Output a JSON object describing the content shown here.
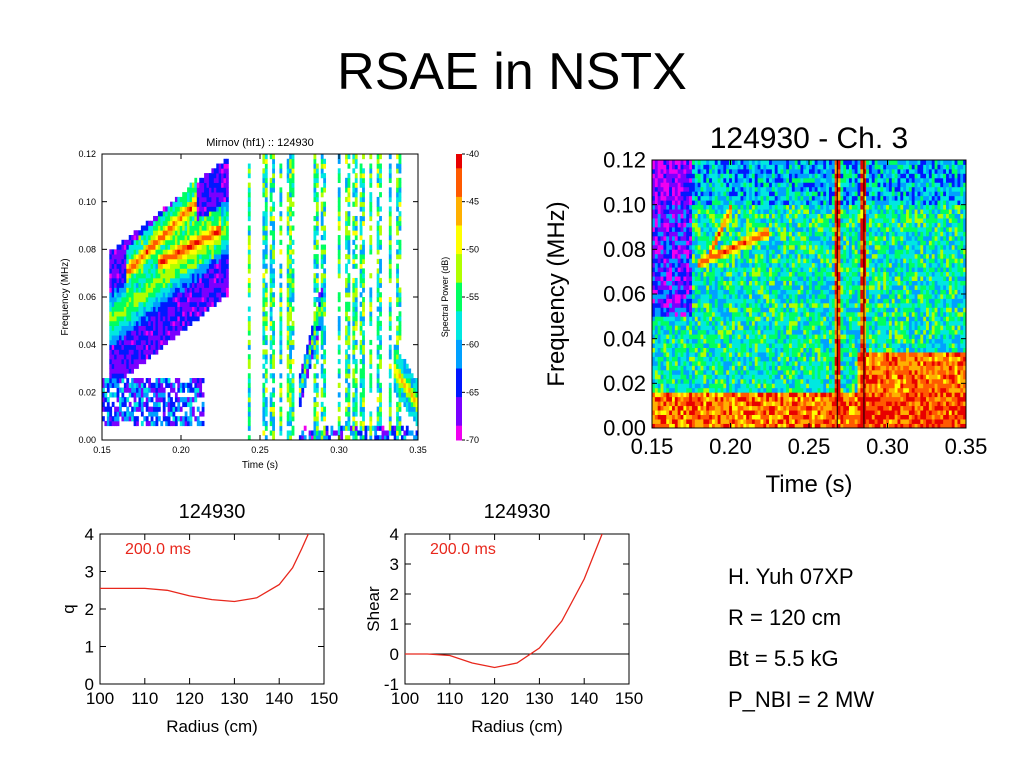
{
  "slide": {
    "title": "RSAE in NSTX",
    "params": [
      "H. Yuh 07XP",
      "R = 120 cm",
      "Bt = 5.5 kG",
      "P_NBI = 2 MW"
    ]
  },
  "colors": {
    "colorbar": [
      "#f000f0",
      "#7a00ff",
      "#0018ff",
      "#00a0ff",
      "#00e8e0",
      "#00ff60",
      "#b0ff00",
      "#ffff00",
      "#ffb000",
      "#ff5a00",
      "#e80000"
    ],
    "profile_line": "#e8271c",
    "zero_line": "#000000",
    "annotation": "#e8271c"
  },
  "chart_data": [
    {
      "type": "heatmap",
      "title": "Mirnov (hf1) :: 124930",
      "xlabel": "Time (s)",
      "ylabel": "Frequency (MHz)",
      "xlim": [
        0.15,
        0.35
      ],
      "ylim": [
        0.0,
        0.12
      ],
      "xticks": [
        "0.15",
        "0.20",
        "0.25",
        "0.30",
        "0.35"
      ],
      "yticks": [
        "0.00",
        "0.02",
        "0.04",
        "0.06",
        "0.08",
        "0.10",
        "0.12"
      ],
      "colorbar": {
        "label": "Spectral Power (dB)",
        "range": [
          -70,
          -40
        ],
        "ticks": [
          "-40",
          "-45",
          "-50",
          "-55",
          "-60",
          "-65",
          "-70"
        ]
      },
      "background": "white",
      "features": [
        {
          "kind": "chirp",
          "t": [
            0.155,
            0.23
          ],
          "f": [
            0.05,
            0.09
          ],
          "width": 0.012,
          "power": -52
        },
        {
          "kind": "chirp",
          "t": [
            0.165,
            0.21
          ],
          "f": [
            0.07,
            0.1
          ],
          "width": 0.004,
          "power": -42
        },
        {
          "kind": "chirp",
          "t": [
            0.185,
            0.225
          ],
          "f": [
            0.074,
            0.088
          ],
          "width": 0.004,
          "power": -41
        },
        {
          "kind": "band",
          "t": [
            0.15,
            0.215
          ],
          "f": [
            0.005,
            0.025
          ],
          "power": -63
        },
        {
          "kind": "chirp",
          "t": [
            0.335,
            0.35
          ],
          "f": [
            0.03,
            0.015
          ],
          "width": 0.004,
          "power": -45
        },
        {
          "kind": "band",
          "t": [
            0.275,
            0.35
          ],
          "f": [
            0.0,
            0.005
          ],
          "power": -64
        },
        {
          "kind": "vlines",
          "t": [
            0.243,
            0.253,
            0.258,
            0.263,
            0.268,
            0.27,
            0.285,
            0.29,
            0.3,
            0.305,
            0.31,
            0.315,
            0.32,
            0.325,
            0.332,
            0.338
          ],
          "power": -56
        },
        {
          "kind": "chirp",
          "t": [
            0.275,
            0.29
          ],
          "f": [
            0.02,
            0.06
          ],
          "width": 0.003,
          "power": -50
        }
      ]
    },
    {
      "type": "heatmap",
      "title": "124930 - Ch. 3",
      "xlabel": "Time (s)",
      "ylabel": "Frequency (MHz)",
      "xlim": [
        0.15,
        0.35
      ],
      "ylim": [
        0.0,
        0.12
      ],
      "xticks": [
        "0.15",
        "0.20",
        "0.25",
        "0.30",
        "0.35"
      ],
      "yticks": [
        "0.00",
        "0.02",
        "0.04",
        "0.06",
        "0.08",
        "0.10",
        "0.12"
      ],
      "background": "green-noise",
      "features": [
        {
          "kind": "chirp",
          "t": [
            0.185,
            0.2
          ],
          "f": [
            0.075,
            0.098
          ],
          "width": 0.003,
          "power": -41
        },
        {
          "kind": "chirp",
          "t": [
            0.18,
            0.225
          ],
          "f": [
            0.074,
            0.088
          ],
          "width": 0.003,
          "power": -41
        },
        {
          "kind": "band",
          "t": [
            0.15,
            0.35
          ],
          "f": [
            0.0,
            0.015
          ],
          "power": -44
        },
        {
          "kind": "vlines",
          "t": [
            0.268,
            0.285
          ],
          "power": -42
        }
      ]
    },
    {
      "type": "line",
      "title": "124930",
      "annotation": "200.0 ms",
      "xlabel": "Radius (cm)",
      "ylabel": "q",
      "xlim": [
        100,
        150
      ],
      "ylim": [
        0,
        4
      ],
      "xticks": [
        "100",
        "110",
        "120",
        "130",
        "140",
        "150"
      ],
      "yticks": [
        "0",
        "1",
        "2",
        "3",
        "4"
      ],
      "series": [
        {
          "x": [
            100,
            105,
            110,
            115,
            120,
            125,
            130,
            135,
            140,
            143,
            145,
            146.5
          ],
          "y": [
            2.55,
            2.55,
            2.55,
            2.5,
            2.35,
            2.25,
            2.2,
            2.3,
            2.65,
            3.1,
            3.6,
            4.0
          ]
        }
      ]
    },
    {
      "type": "line",
      "title": "124930",
      "annotation": "200.0 ms",
      "xlabel": "Radius (cm)",
      "ylabel": "Shear",
      "xlim": [
        100,
        150
      ],
      "ylim": [
        -1,
        4
      ],
      "xticks": [
        "100",
        "110",
        "120",
        "130",
        "140",
        "150"
      ],
      "yticks": [
        "-1",
        "0",
        "1",
        "2",
        "3",
        "4"
      ],
      "zero_line": true,
      "series": [
        {
          "x": [
            100,
            105,
            110,
            115,
            120,
            125,
            130,
            135,
            140,
            144
          ],
          "y": [
            0,
            0,
            -0.05,
            -0.3,
            -0.45,
            -0.3,
            0.2,
            1.1,
            2.5,
            4.0
          ]
        }
      ]
    }
  ]
}
